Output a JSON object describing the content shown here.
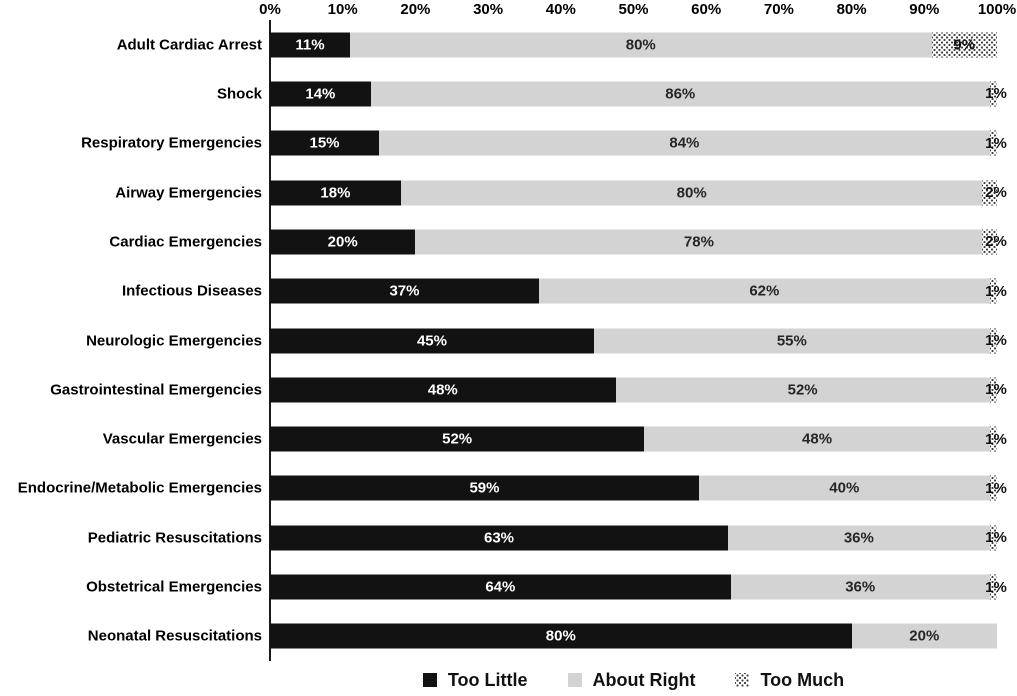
{
  "chart_data": {
    "type": "bar",
    "orientation": "horizontal-stacked",
    "title": "",
    "xlabel": "",
    "ylabel": "",
    "x_axis": {
      "range": [
        0,
        100
      ],
      "tick_step": 10,
      "tick_labels": [
        "0%",
        "10%",
        "20%",
        "30%",
        "40%",
        "50%",
        "60%",
        "70%",
        "80%",
        "90%",
        "100%"
      ],
      "position": "top",
      "grid": false
    },
    "categories": [
      "Adult Cardiac Arrest",
      "Shock",
      "Respiratory Emergencies",
      "Airway Emergencies",
      "Cardiac Emergencies",
      "Infectious Diseases",
      "Neurologic Emergencies",
      "Gastrointestinal Emergencies",
      "Vascular Emergencies",
      "Endocrine/Metabolic Emergencies",
      "Pediatric Resuscitations",
      "Obstetrical Emergencies",
      "Neonatal Resuscitations"
    ],
    "series": [
      {
        "name": "Too Little",
        "style": "solid-black",
        "color": "#121212",
        "label_color": "#ffffff",
        "values": [
          11,
          14,
          15,
          18,
          20,
          37,
          45,
          48,
          52,
          59,
          63,
          64,
          80
        ]
      },
      {
        "name": "About Right",
        "style": "solid-gray",
        "color": "#d3d3d3",
        "label_color": "#262626",
        "values": [
          80,
          86,
          84,
          80,
          78,
          62,
          55,
          52,
          48,
          40,
          36,
          36,
          20
        ]
      },
      {
        "name": "Too Much",
        "style": "dotted-pattern",
        "color": "#ffffff",
        "pattern_dot_color": "#3c3c3c",
        "label_color": "#111111",
        "values": [
          9,
          1,
          1,
          2,
          2,
          1,
          1,
          1,
          1,
          1,
          1,
          1,
          null
        ]
      }
    ],
    "data_label_suffix": "%",
    "legend": {
      "position": "bottom-center",
      "entries": [
        "Too Little",
        "About Right",
        "Too Much"
      ]
    }
  }
}
